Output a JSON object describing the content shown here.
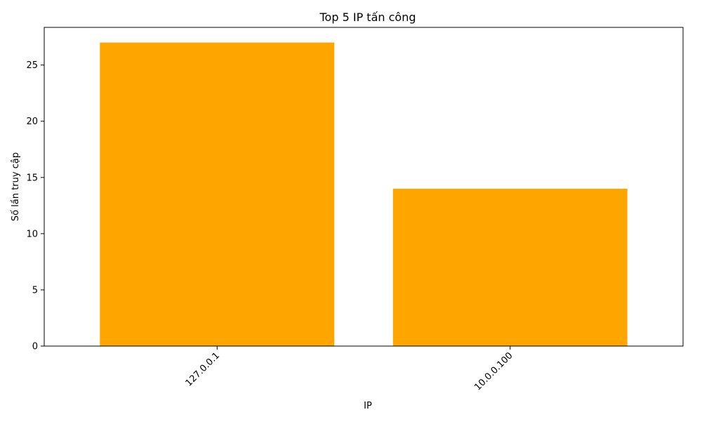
{
  "chart_data": {
    "type": "bar",
    "title": "Top 5 IP tấn công",
    "xlabel": "IP",
    "ylabel": "Số lần truy cập",
    "categories": [
      "127.0.0.1",
      "10.0.0.100"
    ],
    "values": [
      27,
      14
    ],
    "ylim": [
      0,
      28.35
    ],
    "yticks": [
      0,
      5,
      10,
      15,
      20,
      25
    ],
    "bar_color": "#FFA500",
    "grid": false,
    "legend": "none"
  }
}
